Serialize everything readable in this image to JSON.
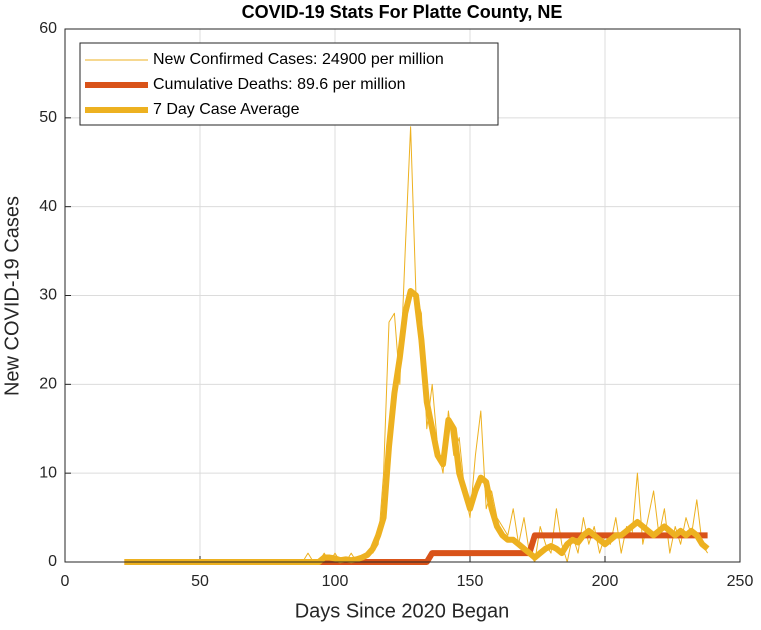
{
  "chart_data": {
    "type": "line",
    "title": "COVID-19 Stats For Platte County, NE",
    "x_label": "Days Since 2020 Began",
    "y_label": "New COVID-19 Cases",
    "xlim": [
      0,
      250
    ],
    "xticks": [
      0,
      50,
      100,
      150,
      200,
      250
    ],
    "ylim": [
      0,
      60
    ],
    "yticks": [
      0,
      10,
      20,
      30,
      40,
      50,
      60
    ],
    "grid": true,
    "legend": "upper left",
    "x": [
      22,
      24,
      26,
      28,
      30,
      32,
      34,
      36,
      38,
      40,
      42,
      44,
      46,
      48,
      50,
      52,
      54,
      56,
      58,
      60,
      62,
      64,
      66,
      68,
      70,
      72,
      74,
      76,
      78,
      80,
      82,
      84,
      86,
      88,
      90,
      92,
      94,
      96,
      98,
      100,
      102,
      104,
      106,
      108,
      110,
      112,
      114,
      116,
      118,
      120,
      122,
      124,
      126,
      128,
      130,
      132,
      134,
      136,
      138,
      140,
      142,
      144,
      146,
      148,
      150,
      152,
      154,
      156,
      158,
      160,
      162,
      164,
      166,
      168,
      170,
      172,
      174,
      176,
      178,
      180,
      182,
      184,
      186,
      188,
      190,
      192,
      194,
      196,
      198,
      200,
      202,
      204,
      206,
      208,
      210,
      212,
      214,
      216,
      218,
      220,
      222,
      224,
      226,
      228,
      230,
      232,
      234,
      236,
      238
    ],
    "series": [
      {
        "name": "New Confirmed Cases: 24900 per million",
        "color": "#EDB120",
        "line_width": 1,
        "values": [
          0,
          0,
          0,
          0,
          0,
          0,
          0,
          0,
          0,
          0,
          0,
          0,
          0,
          0,
          0,
          0,
          0,
          0,
          0,
          0,
          0,
          0,
          0,
          0,
          0,
          0,
          0,
          0,
          0,
          0,
          0,
          0,
          0,
          0,
          1,
          0,
          0,
          1,
          0,
          1,
          0,
          0,
          1,
          0,
          0,
          1,
          1,
          2,
          10,
          27,
          28,
          20,
          35,
          49,
          30,
          28,
          15,
          20,
          13,
          10,
          17,
          12,
          14,
          8,
          5,
          12,
          17,
          6,
          8,
          5,
          4,
          3,
          6,
          2,
          5,
          1,
          0,
          4,
          2,
          1,
          6,
          2,
          0,
          3,
          1,
          5,
          2,
          4,
          1,
          3,
          2,
          5,
          1,
          4,
          3,
          10,
          2,
          5,
          8,
          3,
          6,
          1,
          4,
          2,
          5,
          3,
          7,
          2,
          1
        ]
      },
      {
        "name": "Cumulative Deaths: 89.6 per million",
        "color": "#D95319",
        "line_width": 6,
        "values": [
          0,
          0,
          0,
          0,
          0,
          0,
          0,
          0,
          0,
          0,
          0,
          0,
          0,
          0,
          0,
          0,
          0,
          0,
          0,
          0,
          0,
          0,
          0,
          0,
          0,
          0,
          0,
          0,
          0,
          0,
          0,
          0,
          0,
          0,
          0,
          0,
          0,
          0,
          0,
          0,
          0,
          0,
          0,
          0,
          0,
          0,
          0,
          0,
          0,
          0,
          0,
          0,
          0,
          0,
          0,
          0,
          0,
          1,
          1,
          1,
          1,
          1,
          1,
          1,
          1,
          1,
          1,
          1,
          1,
          1,
          1,
          1,
          1,
          1,
          1,
          1,
          3,
          3,
          3,
          3,
          3,
          3,
          3,
          3,
          3,
          3,
          3,
          3,
          3,
          3,
          3,
          3,
          3,
          3,
          3,
          3,
          3,
          3,
          3,
          3,
          3,
          3,
          3,
          3,
          3,
          3,
          3,
          3,
          3
        ]
      },
      {
        "name": "7 Day Case Average",
        "color": "#EDB120",
        "line_width": 6,
        "values": [
          0,
          0,
          0,
          0,
          0,
          0,
          0,
          0,
          0,
          0,
          0,
          0,
          0,
          0,
          0,
          0,
          0,
          0,
          0,
          0,
          0,
          0,
          0,
          0,
          0,
          0,
          0,
          0,
          0,
          0,
          0,
          0,
          0,
          0,
          0,
          0,
          0,
          0.5,
          0.5,
          0.4,
          0.2,
          0.3,
          0.2,
          0.3,
          0.5,
          0.8,
          1.5,
          3,
          5,
          13,
          19,
          23,
          28,
          30.5,
          30,
          25,
          18,
          15,
          12,
          11,
          16,
          15,
          10,
          8,
          6,
          8,
          9.5,
          9,
          6,
          4,
          3,
          2.5,
          2.5,
          2,
          1.5,
          1,
          0.5,
          1,
          1.5,
          1.8,
          1.5,
          1,
          2,
          2.5,
          2.2,
          3,
          3.5,
          3,
          2.5,
          2,
          2.5,
          3,
          3,
          3.5,
          4,
          4.5,
          4,
          3.5,
          3,
          3.5,
          4,
          3.5,
          3,
          3.5,
          3,
          3.5,
          3,
          2,
          1.5
        ]
      }
    ]
  }
}
